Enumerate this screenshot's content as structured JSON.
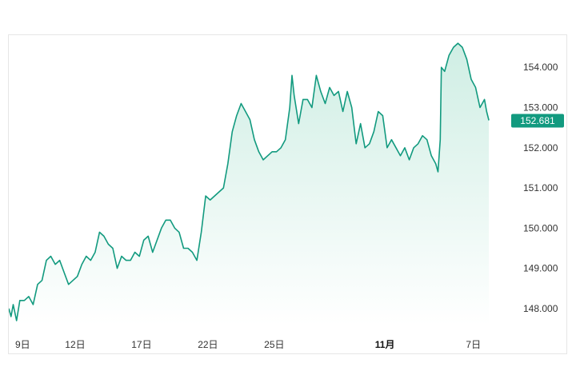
{
  "chart_data": {
    "type": "area",
    "title": "",
    "xlabel": "",
    "ylabel": "",
    "ylim": [
      147.6,
      154.8
    ],
    "y_ticks": [
      "154.000",
      "153.000",
      "152.000",
      "151.000",
      "150.000",
      "149.000",
      "148.000"
    ],
    "y_tick_values": [
      154,
      153,
      152,
      151,
      150,
      149,
      148
    ],
    "x_ticks": [
      {
        "label": "9日",
        "bold": false,
        "at": 0
      },
      {
        "label": "12日",
        "bold": false,
        "at": 3
      },
      {
        "label": "17日",
        "bold": false,
        "at": 6
      },
      {
        "label": "22日",
        "bold": false,
        "at": 9
      },
      {
        "label": "25日",
        "bold": false,
        "at": 12
      },
      {
        "label": "11月",
        "bold": true,
        "at": 17
      },
      {
        "label": "7日",
        "bold": false,
        "at": 21
      }
    ],
    "x_range": [
      0,
      22.6
    ],
    "last_price": "152.681",
    "grid": false,
    "colors": {
      "line": "#129a7f",
      "area_top": "#cfeee4",
      "area_bottom": "#ffffff",
      "price_label_bg": "#129a7f"
    },
    "series": [
      {
        "values": [
          [
            0.0,
            148.0
          ],
          [
            0.1,
            147.8
          ],
          [
            0.2,
            148.1
          ],
          [
            0.35,
            147.7
          ],
          [
            0.5,
            148.2
          ],
          [
            0.7,
            148.2
          ],
          [
            0.9,
            148.3
          ],
          [
            1.1,
            148.1
          ],
          [
            1.3,
            148.6
          ],
          [
            1.5,
            148.7
          ],
          [
            1.7,
            149.2
          ],
          [
            1.9,
            149.3
          ],
          [
            2.1,
            149.1
          ],
          [
            2.3,
            149.2
          ],
          [
            2.5,
            148.9
          ],
          [
            2.7,
            148.6
          ],
          [
            2.9,
            148.7
          ],
          [
            3.1,
            148.8
          ],
          [
            3.3,
            149.1
          ],
          [
            3.5,
            149.3
          ],
          [
            3.7,
            149.2
          ],
          [
            3.9,
            149.4
          ],
          [
            4.1,
            149.9
          ],
          [
            4.3,
            149.8
          ],
          [
            4.5,
            149.6
          ],
          [
            4.7,
            149.5
          ],
          [
            4.9,
            149.0
          ],
          [
            5.1,
            149.3
          ],
          [
            5.3,
            149.2
          ],
          [
            5.5,
            149.2
          ],
          [
            5.7,
            149.4
          ],
          [
            5.9,
            149.3
          ],
          [
            6.1,
            149.7
          ],
          [
            6.3,
            149.8
          ],
          [
            6.5,
            149.4
          ],
          [
            6.7,
            149.7
          ],
          [
            6.9,
            150.0
          ],
          [
            7.1,
            150.2
          ],
          [
            7.3,
            150.2
          ],
          [
            7.5,
            150.0
          ],
          [
            7.7,
            149.9
          ],
          [
            7.9,
            149.5
          ],
          [
            8.1,
            149.5
          ],
          [
            8.3,
            149.4
          ],
          [
            8.5,
            149.2
          ],
          [
            8.7,
            149.9
          ],
          [
            8.9,
            150.8
          ],
          [
            9.1,
            150.7
          ],
          [
            9.3,
            150.8
          ],
          [
            9.5,
            150.9
          ],
          [
            9.7,
            151.0
          ],
          [
            9.9,
            151.6
          ],
          [
            10.1,
            152.4
          ],
          [
            10.3,
            152.8
          ],
          [
            10.5,
            153.1
          ],
          [
            10.7,
            152.9
          ],
          [
            10.9,
            152.7
          ],
          [
            11.1,
            152.2
          ],
          [
            11.3,
            151.9
          ],
          [
            11.5,
            151.7
          ],
          [
            11.7,
            151.8
          ],
          [
            11.9,
            151.9
          ],
          [
            12.1,
            151.9
          ],
          [
            12.3,
            152.0
          ],
          [
            12.5,
            152.2
          ],
          [
            12.7,
            153.0
          ],
          [
            12.8,
            153.8
          ],
          [
            12.9,
            153.3
          ],
          [
            13.1,
            152.6
          ],
          [
            13.3,
            153.2
          ],
          [
            13.5,
            153.2
          ],
          [
            13.7,
            153.0
          ],
          [
            13.9,
            153.8
          ],
          [
            14.1,
            153.4
          ],
          [
            14.3,
            153.1
          ],
          [
            14.5,
            153.5
          ],
          [
            14.7,
            153.3
          ],
          [
            14.9,
            153.4
          ],
          [
            15.1,
            152.9
          ],
          [
            15.3,
            153.4
          ],
          [
            15.5,
            153.0
          ],
          [
            15.7,
            152.1
          ],
          [
            15.9,
            152.6
          ],
          [
            16.1,
            152.0
          ],
          [
            16.3,
            152.1
          ],
          [
            16.5,
            152.4
          ],
          [
            16.7,
            152.9
          ],
          [
            16.9,
            152.8
          ],
          [
            17.1,
            152.0
          ],
          [
            17.3,
            152.2
          ],
          [
            17.5,
            152.0
          ],
          [
            17.7,
            151.8
          ],
          [
            17.9,
            152.0
          ],
          [
            18.1,
            151.7
          ],
          [
            18.3,
            152.0
          ],
          [
            18.5,
            152.1
          ],
          [
            18.7,
            152.3
          ],
          [
            18.9,
            152.2
          ],
          [
            19.1,
            151.8
          ],
          [
            19.3,
            151.6
          ],
          [
            19.4,
            151.4
          ],
          [
            19.5,
            152.2
          ],
          [
            19.55,
            154.0
          ],
          [
            19.7,
            153.9
          ],
          [
            19.9,
            154.3
          ],
          [
            20.1,
            154.5
          ],
          [
            20.3,
            154.6
          ],
          [
            20.5,
            154.5
          ],
          [
            20.7,
            154.2
          ],
          [
            20.9,
            153.7
          ],
          [
            21.1,
            153.5
          ],
          [
            21.3,
            153.0
          ],
          [
            21.5,
            153.2
          ],
          [
            21.6,
            152.9
          ],
          [
            21.7,
            152.681
          ]
        ]
      }
    ]
  }
}
